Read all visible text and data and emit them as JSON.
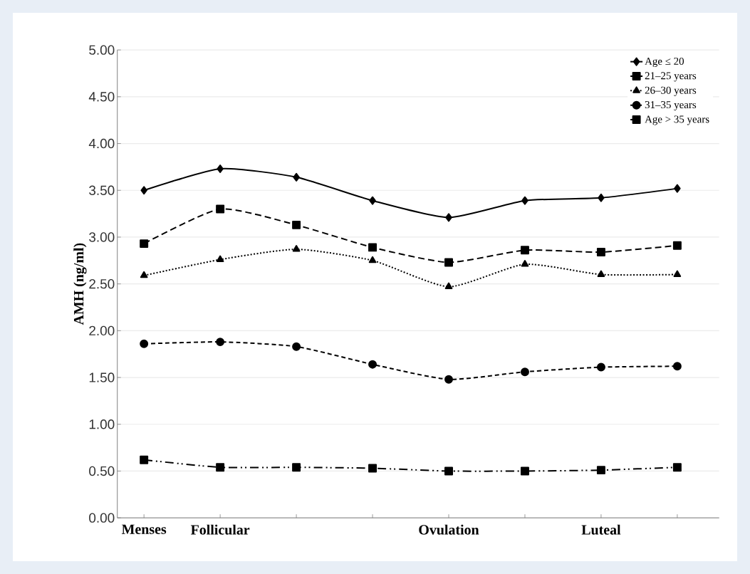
{
  "chart_data": {
    "type": "line",
    "ylabel": "AMH (ng/ml)",
    "categories": [
      "Menses",
      "Follicular",
      null,
      null,
      "Ovulation",
      null,
      "Luteal",
      null
    ],
    "ylim": [
      0,
      5
    ],
    "yticks": [
      {
        "value": 0,
        "label": "0.00"
      },
      {
        "value": 0.5,
        "label": "0.50"
      },
      {
        "value": 1,
        "label": "1.00"
      },
      {
        "value": 1.5,
        "label": "1.50"
      },
      {
        "value": 2,
        "label": "2.00"
      },
      {
        "value": 2.5,
        "label": "2.50"
      },
      {
        "value": 3,
        "label": "3.00"
      },
      {
        "value": 3.5,
        "label": "3.50"
      },
      {
        "value": 4,
        "label": "4.00"
      },
      {
        "value": 4.5,
        "label": "4.50"
      },
      {
        "value": 5,
        "label": "5.00"
      }
    ],
    "grid": "y",
    "legend": "top right",
    "series": [
      {
        "name": "Age ≤ 20",
        "color": "#000000",
        "marker": "diamond",
        "line_style": "solid",
        "values": [
          3.5,
          3.73,
          3.64,
          3.39,
          3.21,
          3.39,
          3.42,
          3.52
        ]
      },
      {
        "name": "21–25 years",
        "color": "#000000",
        "marker": "square",
        "line_style": "dashed",
        "values": [
          2.93,
          3.3,
          3.13,
          2.89,
          2.73,
          2.86,
          2.84,
          2.91
        ]
      },
      {
        "name": "26–30 years",
        "color": "#000000",
        "marker": "triangle",
        "line_style": "dotted",
        "values": [
          2.59,
          2.76,
          2.87,
          2.75,
          2.47,
          2.71,
          2.6,
          2.6
        ]
      },
      {
        "name": "31–35 years",
        "color": "#000000",
        "marker": "circle",
        "line_style": "dashed",
        "values": [
          1.86,
          1.88,
          1.83,
          1.64,
          1.48,
          1.56,
          1.61,
          1.62
        ]
      },
      {
        "name": "Age > 35 years",
        "color": "#000000",
        "marker": "square",
        "line_style": "dashdotdotted",
        "values": [
          0.62,
          0.54,
          0.54,
          0.53,
          0.5,
          0.5,
          0.51,
          0.54
        ]
      }
    ]
  }
}
